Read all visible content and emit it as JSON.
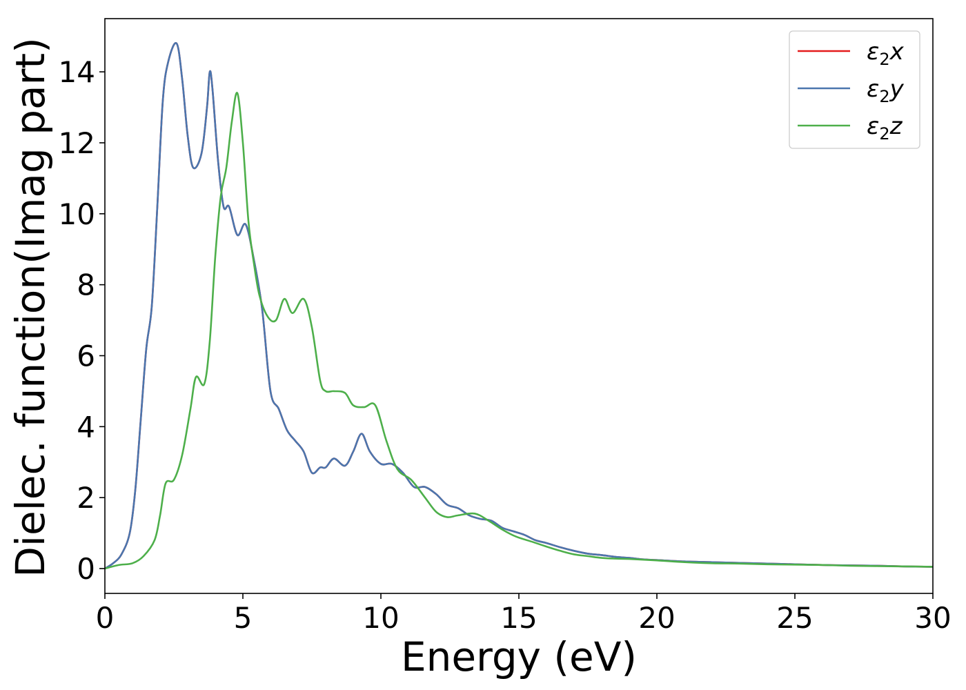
{
  "chart_data": {
    "type": "line",
    "title": "",
    "xlabel": "Energy (eV)",
    "ylabel": "Dielec. function(Imag part)",
    "xlim": [
      0,
      30
    ],
    "ylim": [
      -0.7,
      15.5
    ],
    "x_ticks": [
      "0",
      "5",
      "10",
      "15",
      "20",
      "25",
      "30"
    ],
    "y_ticks": [
      "0",
      "2",
      "4",
      "6",
      "8",
      "10",
      "12",
      "14"
    ],
    "grid": false,
    "legend_position": "top-right",
    "series": [
      {
        "name": "ε2x",
        "legend_main": "ε",
        "legend_sub": "2",
        "legend_var": "x",
        "color": "#e41a1c",
        "points": [
          [
            0,
            0
          ],
          [
            0.3,
            0.15
          ],
          [
            0.6,
            0.4
          ],
          [
            0.9,
            1.0
          ],
          [
            1.1,
            2.2
          ],
          [
            1.3,
            4.2
          ],
          [
            1.5,
            6.2
          ],
          [
            1.7,
            7.4
          ],
          [
            1.9,
            10.2
          ],
          [
            2.1,
            13.2
          ],
          [
            2.3,
            14.3
          ],
          [
            2.6,
            14.8
          ],
          [
            2.8,
            13.8
          ],
          [
            3.0,
            12.2
          ],
          [
            3.2,
            11.3
          ],
          [
            3.5,
            11.7
          ],
          [
            3.7,
            13.0
          ],
          [
            3.8,
            14.0
          ],
          [
            3.9,
            13.5
          ],
          [
            4.1,
            11.5
          ],
          [
            4.3,
            10.2
          ],
          [
            4.5,
            10.2
          ],
          [
            4.8,
            9.4
          ],
          [
            5.1,
            9.7
          ],
          [
            5.4,
            8.7
          ],
          [
            5.7,
            7.3
          ],
          [
            6.0,
            5.0
          ],
          [
            6.3,
            4.5
          ],
          [
            6.6,
            3.9
          ],
          [
            6.9,
            3.6
          ],
          [
            7.2,
            3.3
          ],
          [
            7.5,
            2.7
          ],
          [
            7.8,
            2.85
          ],
          [
            8.0,
            2.85
          ],
          [
            8.3,
            3.1
          ],
          [
            8.7,
            2.9
          ],
          [
            9.0,
            3.3
          ],
          [
            9.3,
            3.8
          ],
          [
            9.6,
            3.3
          ],
          [
            10.0,
            2.95
          ],
          [
            10.4,
            2.95
          ],
          [
            10.8,
            2.7
          ],
          [
            11.2,
            2.3
          ],
          [
            11.6,
            2.3
          ],
          [
            12.0,
            2.1
          ],
          [
            12.4,
            1.8
          ],
          [
            12.8,
            1.7
          ],
          [
            13.2,
            1.5
          ],
          [
            13.6,
            1.4
          ],
          [
            14.0,
            1.35
          ],
          [
            14.4,
            1.15
          ],
          [
            14.8,
            1.05
          ],
          [
            15.2,
            0.95
          ],
          [
            15.6,
            0.8
          ],
          [
            16.0,
            0.72
          ],
          [
            16.5,
            0.6
          ],
          [
            17.0,
            0.5
          ],
          [
            17.5,
            0.42
          ],
          [
            18.0,
            0.38
          ],
          [
            18.5,
            0.33
          ],
          [
            19.0,
            0.3
          ],
          [
            19.5,
            0.26
          ],
          [
            20.0,
            0.24
          ],
          [
            21.0,
            0.2
          ],
          [
            22.0,
            0.18
          ],
          [
            23.0,
            0.16
          ],
          [
            24.0,
            0.14
          ],
          [
            25.0,
            0.12
          ],
          [
            26.0,
            0.1
          ],
          [
            27.0,
            0.09
          ],
          [
            28.0,
            0.08
          ],
          [
            29.0,
            0.06
          ],
          [
            30.0,
            0.05
          ]
        ]
      },
      {
        "name": "ε2y",
        "legend_main": "ε",
        "legend_sub": "2",
        "legend_var": "y",
        "color": "#4a76ae",
        "points": [
          [
            0,
            0
          ],
          [
            0.3,
            0.15
          ],
          [
            0.6,
            0.4
          ],
          [
            0.9,
            1.0
          ],
          [
            1.1,
            2.2
          ],
          [
            1.3,
            4.2
          ],
          [
            1.5,
            6.2
          ],
          [
            1.7,
            7.4
          ],
          [
            1.9,
            10.2
          ],
          [
            2.1,
            13.2
          ],
          [
            2.3,
            14.3
          ],
          [
            2.6,
            14.8
          ],
          [
            2.8,
            13.8
          ],
          [
            3.0,
            12.2
          ],
          [
            3.2,
            11.3
          ],
          [
            3.5,
            11.7
          ],
          [
            3.7,
            13.0
          ],
          [
            3.8,
            14.0
          ],
          [
            3.9,
            13.5
          ],
          [
            4.1,
            11.5
          ],
          [
            4.3,
            10.2
          ],
          [
            4.5,
            10.2
          ],
          [
            4.8,
            9.4
          ],
          [
            5.1,
            9.7
          ],
          [
            5.4,
            8.7
          ],
          [
            5.7,
            7.3
          ],
          [
            6.0,
            5.0
          ],
          [
            6.3,
            4.5
          ],
          [
            6.6,
            3.9
          ],
          [
            6.9,
            3.6
          ],
          [
            7.2,
            3.3
          ],
          [
            7.5,
            2.7
          ],
          [
            7.8,
            2.85
          ],
          [
            8.0,
            2.85
          ],
          [
            8.3,
            3.1
          ],
          [
            8.7,
            2.9
          ],
          [
            9.0,
            3.3
          ],
          [
            9.3,
            3.8
          ],
          [
            9.6,
            3.3
          ],
          [
            10.0,
            2.95
          ],
          [
            10.4,
            2.95
          ],
          [
            10.8,
            2.7
          ],
          [
            11.2,
            2.3
          ],
          [
            11.6,
            2.3
          ],
          [
            12.0,
            2.1
          ],
          [
            12.4,
            1.8
          ],
          [
            12.8,
            1.7
          ],
          [
            13.2,
            1.5
          ],
          [
            13.6,
            1.4
          ],
          [
            14.0,
            1.35
          ],
          [
            14.4,
            1.15
          ],
          [
            14.8,
            1.05
          ],
          [
            15.2,
            0.95
          ],
          [
            15.6,
            0.8
          ],
          [
            16.0,
            0.72
          ],
          [
            16.5,
            0.6
          ],
          [
            17.0,
            0.5
          ],
          [
            17.5,
            0.42
          ],
          [
            18.0,
            0.38
          ],
          [
            18.5,
            0.33
          ],
          [
            19.0,
            0.3
          ],
          [
            19.5,
            0.26
          ],
          [
            20.0,
            0.24
          ],
          [
            21.0,
            0.2
          ],
          [
            22.0,
            0.18
          ],
          [
            23.0,
            0.16
          ],
          [
            24.0,
            0.14
          ],
          [
            25.0,
            0.12
          ],
          [
            26.0,
            0.1
          ],
          [
            27.0,
            0.09
          ],
          [
            28.0,
            0.08
          ],
          [
            29.0,
            0.06
          ],
          [
            30.0,
            0.05
          ]
        ]
      },
      {
        "name": "ε2z",
        "legend_main": "ε",
        "legend_sub": "2",
        "legend_var": "z",
        "color": "#4daf4a",
        "points": [
          [
            0,
            0
          ],
          [
            0.5,
            0.1
          ],
          [
            1.0,
            0.15
          ],
          [
            1.4,
            0.35
          ],
          [
            1.8,
            0.8
          ],
          [
            2.0,
            1.5
          ],
          [
            2.2,
            2.4
          ],
          [
            2.5,
            2.5
          ],
          [
            2.8,
            3.2
          ],
          [
            3.1,
            4.5
          ],
          [
            3.3,
            5.4
          ],
          [
            3.6,
            5.2
          ],
          [
            3.8,
            6.4
          ],
          [
            4.0,
            8.8
          ],
          [
            4.2,
            10.5
          ],
          [
            4.4,
            11.3
          ],
          [
            4.6,
            12.6
          ],
          [
            4.8,
            13.4
          ],
          [
            5.0,
            12.0
          ],
          [
            5.2,
            9.8
          ],
          [
            5.4,
            8.6
          ],
          [
            5.6,
            7.7
          ],
          [
            5.9,
            7.1
          ],
          [
            6.2,
            7.0
          ],
          [
            6.5,
            7.6
          ],
          [
            6.8,
            7.2
          ],
          [
            7.2,
            7.6
          ],
          [
            7.5,
            6.8
          ],
          [
            7.8,
            5.3
          ],
          [
            8.0,
            5.0
          ],
          [
            8.3,
            5.0
          ],
          [
            8.7,
            4.95
          ],
          [
            9.0,
            4.6
          ],
          [
            9.4,
            4.55
          ],
          [
            9.8,
            4.6
          ],
          [
            10.2,
            3.6
          ],
          [
            10.6,
            2.8
          ],
          [
            11.1,
            2.5
          ],
          [
            11.6,
            2.0
          ],
          [
            12.0,
            1.6
          ],
          [
            12.4,
            1.45
          ],
          [
            12.8,
            1.5
          ],
          [
            13.4,
            1.55
          ],
          [
            13.9,
            1.35
          ],
          [
            14.4,
            1.1
          ],
          [
            14.9,
            0.9
          ],
          [
            15.5,
            0.75
          ],
          [
            16.0,
            0.62
          ],
          [
            16.5,
            0.5
          ],
          [
            17.0,
            0.4
          ],
          [
            17.5,
            0.35
          ],
          [
            18.0,
            0.3
          ],
          [
            18.5,
            0.28
          ],
          [
            19.0,
            0.27
          ],
          [
            20.0,
            0.23
          ],
          [
            21.0,
            0.18
          ],
          [
            22.0,
            0.15
          ],
          [
            23.0,
            0.14
          ],
          [
            24.0,
            0.12
          ],
          [
            25.0,
            0.11
          ],
          [
            26.0,
            0.1
          ],
          [
            27.0,
            0.08
          ],
          [
            28.0,
            0.07
          ],
          [
            29.0,
            0.06
          ],
          [
            30.0,
            0.05
          ]
        ]
      }
    ]
  }
}
